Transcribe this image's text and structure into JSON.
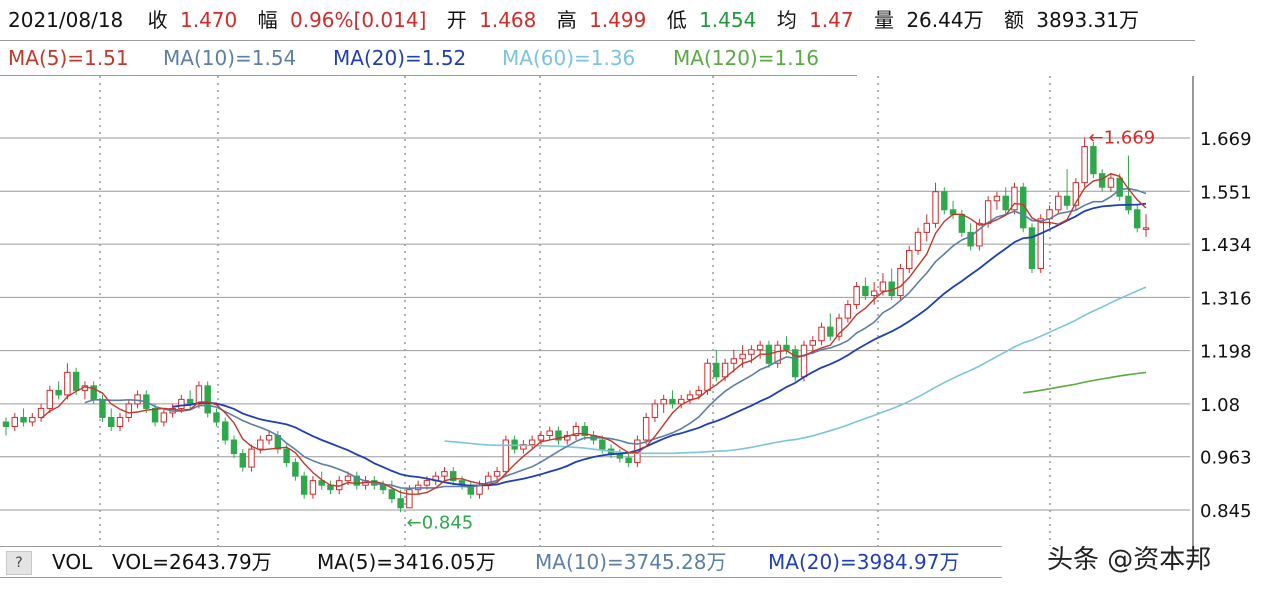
{
  "header": {
    "date": "2021/08/18",
    "close_label": "收",
    "close_value": "1.470",
    "change_label": "幅",
    "change_value": "0.96%[0.014]",
    "open_label": "开",
    "open_value": "1.468",
    "high_label": "高",
    "high_value": "1.499",
    "low_label": "低",
    "low_value": "1.454",
    "avg_label": "均",
    "avg_value": "1.47",
    "volume_label": "量",
    "volume_value": "26.44万",
    "amount_label": "额",
    "amount_value": "3893.31万"
  },
  "ma_legend": {
    "ma5": "MA(5)=1.51",
    "ma10": "MA(10)=1.54",
    "ma20": "MA(20)=1.52",
    "ma60": "MA(60)=1.36",
    "ma120": "MA(120)=1.16"
  },
  "volume_bar": {
    "help": "?",
    "label": "VOL",
    "vol": "VOL=2643.79万",
    "ma5": "MA(5)=3416.05万",
    "ma10": "MA(10)=3745.28万",
    "ma20": "MA(20)=3984.97万"
  },
  "watermark": "头条 @资本邦",
  "colors": {
    "up": "#d42a2a",
    "down": "#2ea84a",
    "ma5": "#c0392b",
    "ma10": "#5b7fa6",
    "ma20": "#1f3fb4",
    "ma60": "#7cc4dc",
    "ma120": "#5aaa44"
  },
  "chart_data": {
    "type": "candlestick",
    "y_ticks": [
      "1.669",
      "1.551",
      "1.434",
      "1.316",
      "1.198",
      "1.08",
      "0.963",
      "0.845"
    ],
    "ylim": [
      0.8,
      1.78
    ],
    "annotations": {
      "max": "1.669",
      "min": "0.845"
    },
    "series": [
      {
        "name": "K",
        "ohlc": [
          [
            1.04,
            1.05,
            1.01,
            1.03
          ],
          [
            1.03,
            1.06,
            1.02,
            1.05
          ],
          [
            1.05,
            1.07,
            1.03,
            1.04
          ],
          [
            1.04,
            1.06,
            1.03,
            1.05
          ],
          [
            1.05,
            1.08,
            1.04,
            1.07
          ],
          [
            1.07,
            1.12,
            1.06,
            1.11
          ],
          [
            1.11,
            1.13,
            1.09,
            1.1
          ],
          [
            1.1,
            1.17,
            1.09,
            1.15
          ],
          [
            1.15,
            1.16,
            1.1,
            1.11
          ],
          [
            1.11,
            1.13,
            1.09,
            1.12
          ],
          [
            1.12,
            1.13,
            1.08,
            1.09
          ],
          [
            1.09,
            1.1,
            1.04,
            1.05
          ],
          [
            1.05,
            1.07,
            1.02,
            1.03
          ],
          [
            1.03,
            1.06,
            1.02,
            1.05
          ],
          [
            1.05,
            1.09,
            1.04,
            1.08
          ],
          [
            1.08,
            1.11,
            1.07,
            1.1
          ],
          [
            1.1,
            1.11,
            1.06,
            1.07
          ],
          [
            1.07,
            1.08,
            1.03,
            1.04
          ],
          [
            1.04,
            1.07,
            1.03,
            1.06
          ],
          [
            1.06,
            1.08,
            1.05,
            1.07
          ],
          [
            1.07,
            1.1,
            1.06,
            1.09
          ],
          [
            1.09,
            1.11,
            1.07,
            1.08
          ],
          [
            1.08,
            1.13,
            1.07,
            1.12
          ],
          [
            1.12,
            1.13,
            1.05,
            1.06
          ],
          [
            1.06,
            1.07,
            1.03,
            1.04
          ],
          [
            1.04,
            1.05,
            0.99,
            1.0
          ],
          [
            1.0,
            1.01,
            0.96,
            0.97
          ],
          [
            0.97,
            0.98,
            0.93,
            0.94
          ],
          [
            0.94,
            0.99,
            0.93,
            0.98
          ],
          [
            0.98,
            1.01,
            0.97,
            1.0
          ],
          [
            1.0,
            1.02,
            0.99,
            1.01
          ],
          [
            1.01,
            1.02,
            0.97,
            0.98
          ],
          [
            0.98,
            0.99,
            0.94,
            0.95
          ],
          [
            0.95,
            0.96,
            0.91,
            0.92
          ],
          [
            0.92,
            0.93,
            0.87,
            0.88
          ],
          [
            0.88,
            0.92,
            0.87,
            0.91
          ],
          [
            0.91,
            0.93,
            0.89,
            0.9
          ],
          [
            0.9,
            0.91,
            0.88,
            0.89
          ],
          [
            0.89,
            0.92,
            0.88,
            0.91
          ],
          [
            0.91,
            0.93,
            0.9,
            0.92
          ],
          [
            0.92,
            0.93,
            0.89,
            0.9
          ],
          [
            0.9,
            0.92,
            0.89,
            0.91
          ],
          [
            0.91,
            0.92,
            0.89,
            0.9
          ],
          [
            0.9,
            0.91,
            0.88,
            0.89
          ],
          [
            0.89,
            0.91,
            0.86,
            0.87
          ],
          [
            0.87,
            0.89,
            0.84,
            0.85
          ],
          [
            0.85,
            0.9,
            0.85,
            0.89
          ],
          [
            0.89,
            0.91,
            0.88,
            0.9
          ],
          [
            0.9,
            0.92,
            0.89,
            0.91
          ],
          [
            0.91,
            0.93,
            0.9,
            0.92
          ],
          [
            0.92,
            0.94,
            0.91,
            0.93
          ],
          [
            0.93,
            0.94,
            0.9,
            0.91
          ],
          [
            0.91,
            0.92,
            0.89,
            0.9
          ],
          [
            0.9,
            0.91,
            0.87,
            0.88
          ],
          [
            0.88,
            0.91,
            0.87,
            0.9
          ],
          [
            0.9,
            0.93,
            0.89,
            0.92
          ],
          [
            0.92,
            0.94,
            0.91,
            0.93
          ],
          [
            0.93,
            1.01,
            0.92,
            1.0
          ],
          [
            1.0,
            1.01,
            0.97,
            0.98
          ],
          [
            0.98,
            1.0,
            0.97,
            0.99
          ],
          [
            0.99,
            1.01,
            0.98,
            1.0
          ],
          [
            1.0,
            1.02,
            0.99,
            1.01
          ],
          [
            1.01,
            1.03,
            1.0,
            1.02
          ],
          [
            1.02,
            1.03,
            0.99,
            1.0
          ],
          [
            1.0,
            1.02,
            0.99,
            1.01
          ],
          [
            1.01,
            1.04,
            1.0,
            1.03
          ],
          [
            1.03,
            1.04,
            1.0,
            1.01
          ],
          [
            1.01,
            1.02,
            0.99,
            1.0
          ],
          [
            1.0,
            1.01,
            0.97,
            0.98
          ],
          [
            0.98,
            0.99,
            0.96,
            0.97
          ],
          [
            0.97,
            0.98,
            0.95,
            0.96
          ],
          [
            0.96,
            0.97,
            0.94,
            0.95
          ],
          [
            0.95,
            1.01,
            0.94,
            1.0
          ],
          [
            1.0,
            1.06,
            0.99,
            1.05
          ],
          [
            1.05,
            1.09,
            1.04,
            1.08
          ],
          [
            1.08,
            1.1,
            1.06,
            1.09
          ],
          [
            1.09,
            1.11,
            1.07,
            1.08
          ],
          [
            1.08,
            1.1,
            1.07,
            1.09
          ],
          [
            1.09,
            1.11,
            1.08,
            1.1
          ],
          [
            1.1,
            1.12,
            1.09,
            1.11
          ],
          [
            1.11,
            1.18,
            1.1,
            1.17
          ],
          [
            1.17,
            1.2,
            1.13,
            1.14
          ],
          [
            1.14,
            1.18,
            1.13,
            1.17
          ],
          [
            1.17,
            1.2,
            1.15,
            1.18
          ],
          [
            1.18,
            1.21,
            1.16,
            1.19
          ],
          [
            1.19,
            1.21,
            1.17,
            1.2
          ],
          [
            1.2,
            1.22,
            1.18,
            1.21
          ],
          [
            1.21,
            1.22,
            1.16,
            1.17
          ],
          [
            1.17,
            1.22,
            1.16,
            1.21
          ],
          [
            1.21,
            1.23,
            1.19,
            1.2
          ],
          [
            1.2,
            1.21,
            1.13,
            1.14
          ],
          [
            1.14,
            1.22,
            1.13,
            1.21
          ],
          [
            1.21,
            1.23,
            1.19,
            1.22
          ],
          [
            1.22,
            1.26,
            1.21,
            1.25
          ],
          [
            1.25,
            1.28,
            1.22,
            1.23
          ],
          [
            1.23,
            1.28,
            1.22,
            1.27
          ],
          [
            1.27,
            1.31,
            1.26,
            1.3
          ],
          [
            1.3,
            1.35,
            1.29,
            1.34
          ],
          [
            1.34,
            1.36,
            1.31,
            1.32
          ],
          [
            1.32,
            1.35,
            1.3,
            1.33
          ],
          [
            1.33,
            1.37,
            1.32,
            1.35
          ],
          [
            1.35,
            1.38,
            1.31,
            1.32
          ],
          [
            1.32,
            1.39,
            1.31,
            1.38
          ],
          [
            1.38,
            1.43,
            1.37,
            1.42
          ],
          [
            1.42,
            1.47,
            1.41,
            1.46
          ],
          [
            1.46,
            1.5,
            1.44,
            1.48
          ],
          [
            1.48,
            1.57,
            1.47,
            1.55
          ],
          [
            1.55,
            1.56,
            1.5,
            1.51
          ],
          [
            1.51,
            1.53,
            1.49,
            1.5
          ],
          [
            1.5,
            1.51,
            1.45,
            1.46
          ],
          [
            1.46,
            1.48,
            1.42,
            1.43
          ],
          [
            1.43,
            1.49,
            1.42,
            1.48
          ],
          [
            1.48,
            1.54,
            1.47,
            1.53
          ],
          [
            1.53,
            1.55,
            1.51,
            1.54
          ],
          [
            1.54,
            1.56,
            1.5,
            1.51
          ],
          [
            1.51,
            1.57,
            1.5,
            1.56
          ],
          [
            1.56,
            1.57,
            1.46,
            1.47
          ],
          [
            1.47,
            1.48,
            1.37,
            1.38
          ],
          [
            1.38,
            1.5,
            1.37,
            1.49
          ],
          [
            1.49,
            1.52,
            1.47,
            1.51
          ],
          [
            1.51,
            1.55,
            1.5,
            1.54
          ],
          [
            1.54,
            1.6,
            1.51,
            1.52
          ],
          [
            1.52,
            1.58,
            1.51,
            1.57
          ],
          [
            1.57,
            1.67,
            1.56,
            1.65
          ],
          [
            1.65,
            1.66,
            1.58,
            1.59
          ],
          [
            1.59,
            1.6,
            1.55,
            1.56
          ],
          [
            1.56,
            1.59,
            1.55,
            1.58
          ],
          [
            1.58,
            1.59,
            1.53,
            1.54
          ],
          [
            1.54,
            1.63,
            1.5,
            1.51
          ],
          [
            1.51,
            1.52,
            1.46,
            1.47
          ],
          [
            1.47,
            1.5,
            1.45,
            1.47
          ]
        ]
      }
    ]
  }
}
